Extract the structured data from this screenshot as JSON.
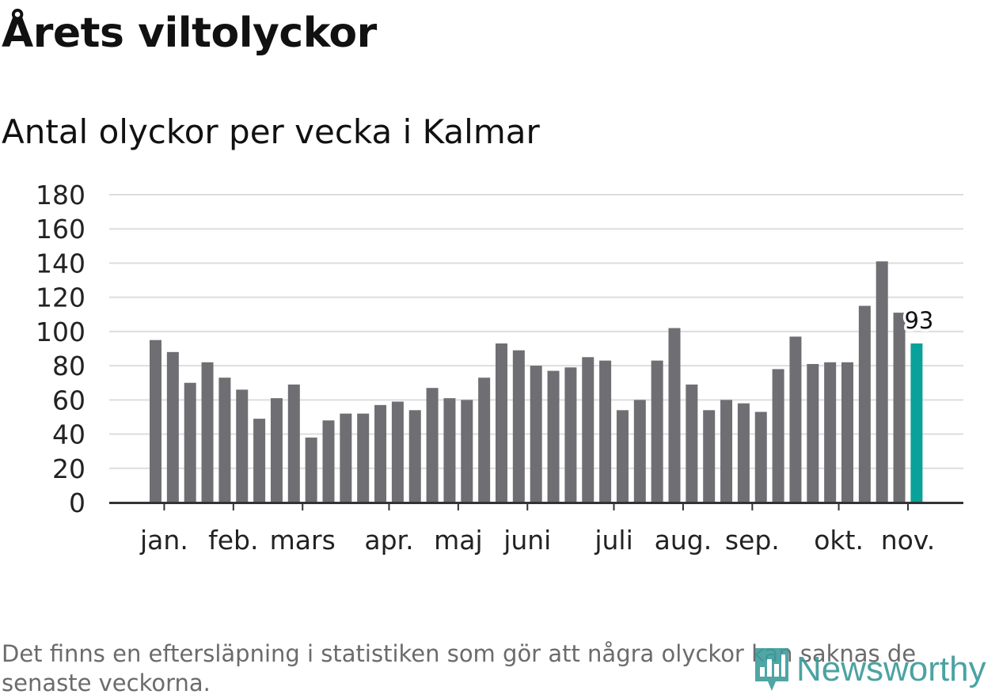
{
  "header": {
    "title": "Årets viltolyckor",
    "subtitle": "Antal olyckor per vecka i Kalmar"
  },
  "footer": {
    "note": "Det finns en eftersläpning i statistiken som gör att några olyckor kan saknas de senaste veckorna.",
    "brand": "Newsworthy"
  },
  "colors": {
    "bar": "#6e6e73",
    "highlight": "#0aa19a",
    "grid": "#dddddd",
    "axis": "#333333",
    "tick_text": "#222222",
    "brand": "#3d9b9b"
  },
  "chart_data": {
    "type": "bar",
    "title": "Årets viltolyckor",
    "subtitle": "Antal olyckor per vecka i Kalmar",
    "xlabel": "",
    "ylabel": "",
    "ylim": [
      0,
      180
    ],
    "yticks": [
      0,
      20,
      40,
      60,
      80,
      100,
      120,
      140,
      160,
      180
    ],
    "grid": true,
    "week_values": [
      95,
      88,
      70,
      82,
      73,
      66,
      49,
      61,
      69,
      38,
      48,
      52,
      52,
      57,
      59,
      54,
      67,
      61,
      60,
      73,
      93,
      89,
      80,
      77,
      79,
      85,
      83,
      54,
      60,
      83,
      102,
      69,
      54,
      60,
      58,
      53,
      78,
      97,
      81,
      82,
      82,
      115,
      141,
      111,
      93
    ],
    "highlight_index": 44,
    "highlight_label": "93",
    "month_ticks": [
      {
        "label": "jan.",
        "week_index": 0.5
      },
      {
        "label": "feb.",
        "week_index": 4.5
      },
      {
        "label": "mars",
        "week_index": 8.5
      },
      {
        "label": "apr.",
        "week_index": 13.5
      },
      {
        "label": "maj",
        "week_index": 17.5
      },
      {
        "label": "juni",
        "week_index": 21.5
      },
      {
        "label": "juli",
        "week_index": 26.5
      },
      {
        "label": "aug.",
        "week_index": 30.5
      },
      {
        "label": "sep.",
        "week_index": 34.5
      },
      {
        "label": "okt.",
        "week_index": 39.5
      },
      {
        "label": "nov.",
        "week_index": 43.5
      }
    ]
  }
}
